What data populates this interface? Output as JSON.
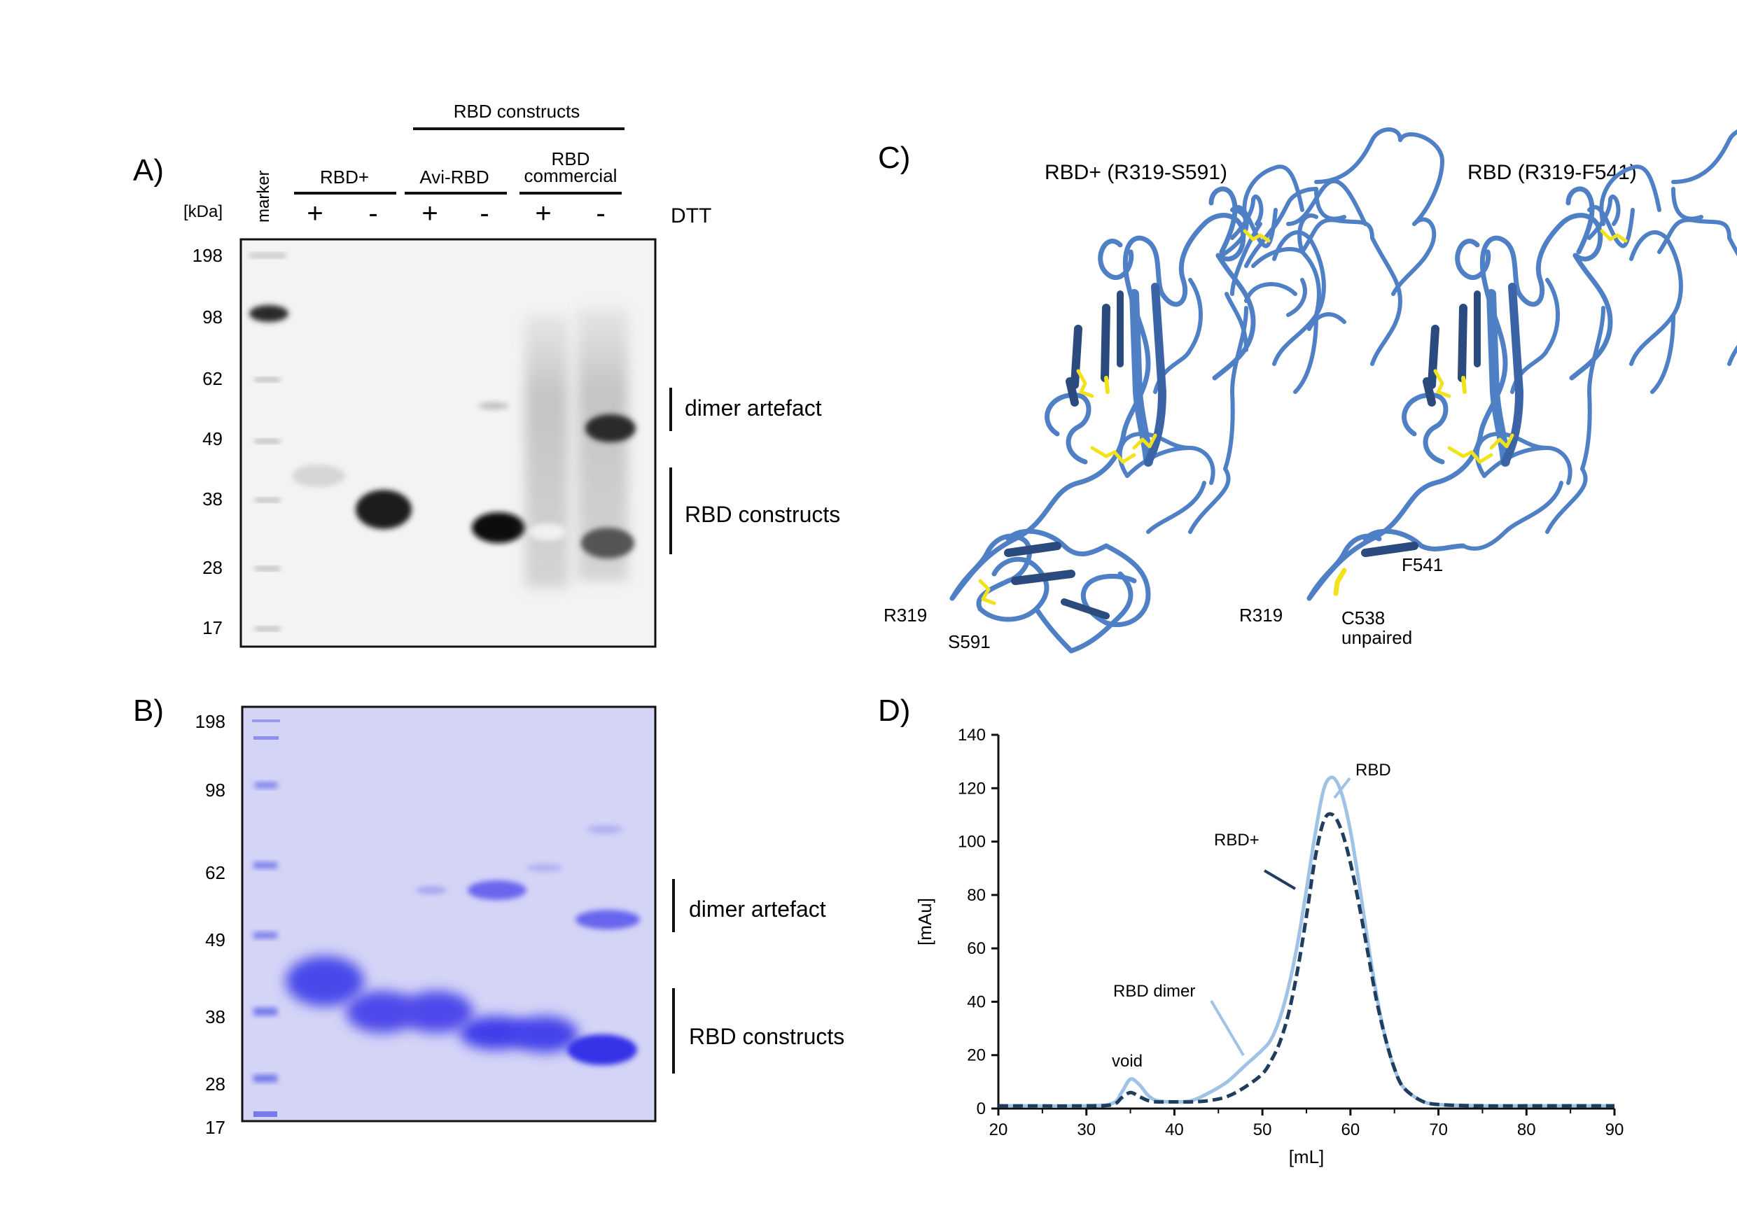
{
  "panels": {
    "a": "A)",
    "b": "B)",
    "c": "C)",
    "d": "D)"
  },
  "western": {
    "group_header": "RBD constructs",
    "marker_label": "marker",
    "kda_label": "[kDa]",
    "dtt_label": "DTT",
    "groups": [
      "RBD+",
      "Avi-RBD",
      "RBD\ncommercial"
    ],
    "group_lines": [
      "RBD",
      "commercial"
    ],
    "lanes": [
      "+",
      "-",
      "+",
      "-",
      "+",
      "-"
    ],
    "mw_ticks": [
      "198",
      "98",
      "62",
      "49",
      "38",
      "28",
      "17"
    ],
    "annotations": [
      "dimer artefact",
      "RBD constructs"
    ]
  },
  "sds_page": {
    "mw_ticks": [
      "198",
      "98",
      "62",
      "49",
      "38",
      "28",
      "17"
    ],
    "annotations": [
      "dimer artefact",
      "RBD constructs"
    ]
  },
  "structures": {
    "left_title": "RBD+ (R319-S591)",
    "right_title": "RBD (R319-F541)",
    "left_labels": [
      "R319",
      "S591"
    ],
    "right_labels": [
      "R319",
      "F541",
      "C538",
      "unpaired"
    ],
    "colors": {
      "ribbon": "#4f7fc4",
      "ribbon_dark": "#2b4a7e",
      "disulfide": "#f2e21c"
    }
  },
  "chart_data": {
    "type": "line",
    "xlabel": "[mL]",
    "ylabel": "[mAu]",
    "xlim": [
      20,
      90
    ],
    "ylim": [
      0,
      140
    ],
    "xticks": [
      20,
      30,
      40,
      50,
      60,
      70,
      80,
      90
    ],
    "yticks": [
      0,
      20,
      40,
      60,
      80,
      100,
      120,
      140
    ],
    "series": [
      {
        "name": "RBD",
        "color": "#9ec3e6",
        "dash": "solid",
        "x": [
          20,
          30,
          33,
          34,
          35,
          36,
          37,
          38,
          40,
          42,
          44,
          46,
          48,
          50,
          51,
          52,
          53,
          54,
          55,
          56,
          57,
          58,
          59,
          60,
          61,
          62,
          63,
          64,
          65,
          66,
          68,
          70,
          75,
          80,
          90
        ],
        "y": [
          1,
          1,
          2,
          6,
          11,
          9,
          5,
          3,
          2.5,
          3,
          6,
          10,
          16,
          22,
          26,
          34,
          46,
          62,
          82,
          103,
          120,
          124,
          118,
          104,
          84,
          62,
          42,
          26,
          15,
          8,
          3,
          1.5,
          1,
          1,
          1
        ]
      },
      {
        "name": "RBD+",
        "color": "#1f3d5e",
        "dash": "dashed",
        "x": [
          20,
          30,
          33,
          34,
          35,
          36,
          37,
          38,
          40,
          42,
          44,
          46,
          48,
          50,
          51,
          52,
          53,
          54,
          55,
          56,
          57,
          58,
          59,
          60,
          61,
          62,
          63,
          64,
          65,
          66,
          68,
          70,
          75,
          80,
          90
        ],
        "y": [
          1,
          1,
          1.5,
          4,
          6,
          4.5,
          3,
          2.5,
          2.5,
          2.5,
          3,
          4.5,
          8,
          13,
          18,
          25,
          36,
          52,
          72,
          94,
          108,
          110,
          104,
          92,
          76,
          58,
          40,
          26,
          15,
          8,
          3,
          1.5,
          1,
          1,
          1
        ]
      }
    ],
    "annotations": [
      "RBD",
      "RBD+",
      "RBD dimer",
      "void"
    ]
  }
}
